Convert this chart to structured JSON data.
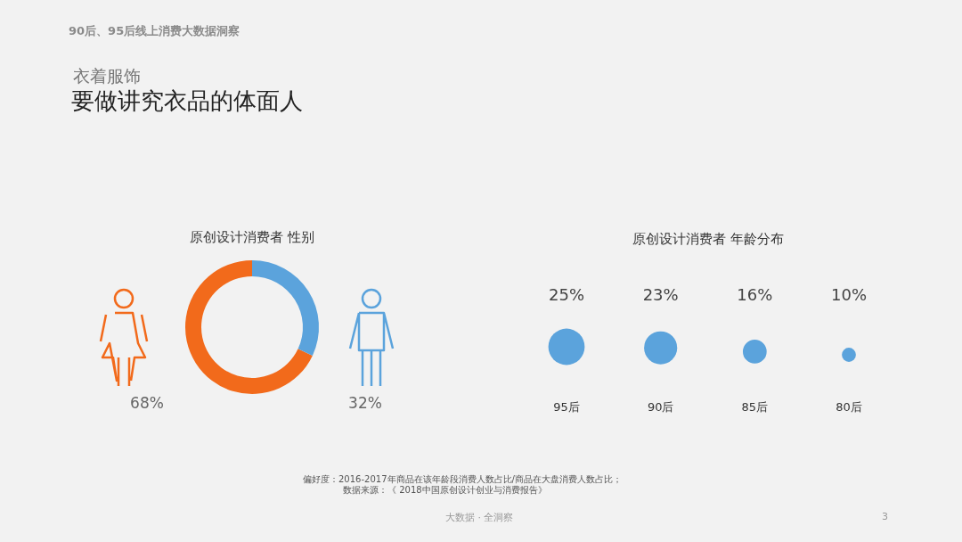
{
  "chart_data": [
    {
      "type": "other",
      "title": "要做讲究衣品的体面人",
      "subtitle": "衣着服饰",
      "annotations": [
        "90后、95后线上消费大数据洞察",
        "偏好度：2016-2017年商品在该年龄段消费人数占比/商品在大盘消费人数占比；",
        "数据来源：《 2018中国原创设计创业与消费报告》",
        "大数据 · 全洞察",
        "3"
      ]
    },
    {
      "type": "donut",
      "title": "原创设计消费者 性别",
      "categories": [
        null,
        null
      ],
      "values": [
        68,
        32
      ],
      "colors": [
        "#f26a1b",
        "#5ba3dc"
      ],
      "value_labels": [
        "68%",
        "32%"
      ]
    },
    {
      "type": "bubble",
      "title": "原创设计消费者 年龄分布",
      "categories": [
        "95后",
        "90后",
        "85后",
        "80后"
      ],
      "values": [
        25,
        23,
        16,
        10
      ],
      "sizes": [
        1,
        0.83,
        0.43,
        0.15
      ],
      "color": "#5ba3dc",
      "value_labels": [
        "25%",
        "23%",
        "16%",
        "10%"
      ]
    }
  ]
}
